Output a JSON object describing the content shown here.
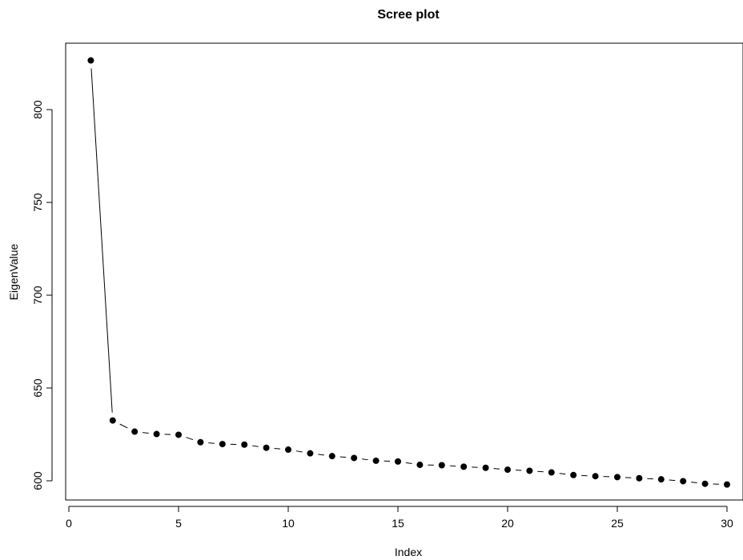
{
  "chart_data": {
    "type": "scatter",
    "title": "Scree plot",
    "xlabel": "Index",
    "ylabel": "EigenValue",
    "xlim": [
      0,
      30
    ],
    "ylim": [
      590,
      825
    ],
    "xticks": [
      0,
      5,
      10,
      15,
      20,
      25,
      30
    ],
    "yticks": [
      600,
      650,
      700,
      750,
      800
    ],
    "grid": false,
    "legend": "none",
    "point_style": "filled-circle",
    "connect_points": true,
    "series": [
      {
        "x": [
          1,
          2,
          3,
          4,
          5,
          6,
          7,
          8,
          9,
          10,
          11,
          12,
          13,
          14,
          15,
          16,
          17,
          18,
          19,
          20,
          21,
          22,
          23,
          24,
          25,
          26,
          27,
          28,
          29,
          30
        ],
        "values": [
          826.5,
          632.5,
          626.5,
          625.2,
          624.8,
          620.8,
          619.8,
          619.5,
          617.8,
          616.8,
          614.8,
          613.3,
          612.3,
          610.8,
          610.4,
          608.6,
          608.4,
          607.6,
          607.0,
          606.0,
          605.4,
          604.5,
          603.1,
          602.5,
          602.0,
          601.4,
          600.8,
          599.8,
          598.4,
          598.0
        ]
      }
    ]
  }
}
